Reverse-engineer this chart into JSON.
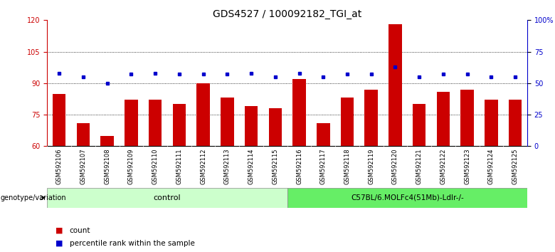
{
  "title": "GDS4527 / 100092182_TGI_at",
  "samples": [
    "GSM592106",
    "GSM592107",
    "GSM592108",
    "GSM592109",
    "GSM592110",
    "GSM592111",
    "GSM592112",
    "GSM592113",
    "GSM592114",
    "GSM592115",
    "GSM592116",
    "GSM592117",
    "GSM592118",
    "GSM592119",
    "GSM592120",
    "GSM592121",
    "GSM592122",
    "GSM592123",
    "GSM592124",
    "GSM592125"
  ],
  "bar_values": [
    85,
    71,
    65,
    82,
    82,
    80,
    90,
    83,
    79,
    78,
    92,
    71,
    83,
    87,
    118,
    80,
    86,
    87,
    82,
    82
  ],
  "dot_values_pct": [
    58,
    55,
    50,
    57,
    58,
    57,
    57,
    57,
    58,
    55,
    58,
    55,
    57,
    57,
    63,
    55,
    57,
    57,
    55,
    55
  ],
  "bar_color": "#cc0000",
  "dot_color": "#0000cc",
  "ylim_left": [
    60,
    120
  ],
  "ylim_right": [
    0,
    100
  ],
  "yticks_left": [
    60,
    75,
    90,
    105,
    120
  ],
  "yticks_right": [
    0,
    25,
    50,
    75,
    100
  ],
  "ytick_labels_right": [
    "0",
    "25",
    "50",
    "75",
    "100%"
  ],
  "hlines": [
    75,
    90,
    105
  ],
  "control_count": 10,
  "group1_label": "control",
  "group2_label": "C57BL/6.MOLFc4(51Mb)-Ldlr-/-",
  "group1_color": "#ccffcc",
  "group2_color": "#66ee66",
  "xticklabel_bg": "#d0d0d0",
  "genotype_label": "genotype/variation",
  "legend_bar": "count",
  "legend_dot": "percentile rank within the sample",
  "bar_color_legend": "#cc0000",
  "dot_color_legend": "#0000cc",
  "title_fontsize": 10,
  "tick_fontsize": 7,
  "axis_color_left": "#cc0000",
  "axis_color_right": "#0000cc"
}
